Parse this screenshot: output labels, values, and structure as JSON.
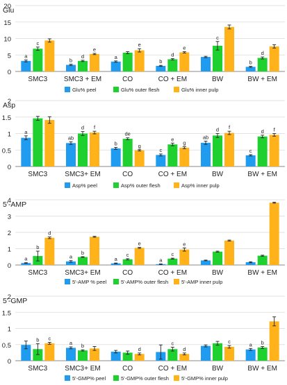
{
  "colors": {
    "peel": "#1f9bf0",
    "outer": "#1fd12f",
    "inner": "#ffb21a",
    "grid": "#d9d9d9",
    "axis": "#888888",
    "text": "#222222"
  },
  "chart_data": [
    {
      "type": "bar",
      "panel_title": "Glu",
      "categories": [
        "SMC3",
        "SMC3 + EM",
        "CO",
        "CO + EM",
        "BW",
        "BW + EM"
      ],
      "ylim": [
        0,
        20
      ],
      "yticks": [
        0,
        5,
        10,
        15,
        20
      ],
      "grid": true,
      "legend_placement": "bottom",
      "series": [
        {
          "name": "Glu% peel",
          "color_key": "peel",
          "values": [
            3.2,
            2.0,
            3.0,
            1.7,
            4.4,
            1.4
          ],
          "errors": [
            0.3,
            0.2,
            0.2,
            0.15,
            0.2,
            0.15
          ],
          "letters": [
            "a",
            "b",
            "a",
            "b",
            "",
            "b"
          ]
        },
        {
          "name": "Glu% outer flesh",
          "color_key": "outer",
          "values": [
            6.9,
            3.2,
            5.7,
            3.7,
            7.8,
            4.1
          ],
          "errors": [
            0.5,
            0.2,
            0.3,
            0.2,
            1.3,
            0.3
          ],
          "letters": [
            "c",
            "d",
            "",
            "d",
            "c",
            "d"
          ]
        },
        {
          "name": "Glu% inner pulp",
          "color_key": "inner",
          "values": [
            9.4,
            5.3,
            6.4,
            5.8,
            13.5,
            7.6
          ],
          "errors": [
            0.5,
            0.2,
            0.5,
            0.2,
            0.6,
            0.5
          ],
          "letters": [
            "",
            "e",
            "e",
            "e",
            "",
            ""
          ]
        }
      ]
    },
    {
      "type": "bar",
      "panel_title": "Asp",
      "categories": [
        "SMC3",
        "SMC3+ EM",
        "CO",
        "CO + EM",
        "BW",
        "BW + EM"
      ],
      "ylim": [
        0,
        2
      ],
      "yticks": [
        0,
        0.5,
        1,
        1.5,
        2
      ],
      "grid": true,
      "legend_placement": "bottom",
      "series": [
        {
          "name": "Asp% peel",
          "color_key": "peel",
          "values": [
            0.87,
            0.71,
            0.55,
            0.35,
            0.72,
            0.34
          ],
          "errors": [
            0.06,
            0.04,
            0.03,
            0.03,
            0.05,
            0.02
          ],
          "letters": [
            "a",
            "ab",
            "b",
            "c",
            "ab",
            "c"
          ]
        },
        {
          "name": "Asp% outer flesh",
          "color_key": "outer",
          "values": [
            1.46,
            1.0,
            0.84,
            0.67,
            0.94,
            0.91
          ],
          "errors": [
            0.06,
            0.06,
            0.03,
            0.04,
            0.06,
            0.04
          ],
          "letters": [
            "",
            "d",
            "de",
            "e",
            "d",
            "d"
          ]
        },
        {
          "name": "Asp% inner pulp",
          "color_key": "inner",
          "values": [
            1.41,
            1.03,
            0.49,
            0.57,
            1.02,
            0.96
          ],
          "errors": [
            0.1,
            0.04,
            0.02,
            0.03,
            0.05,
            0.04
          ],
          "letters": [
            "",
            "f",
            "g",
            "g",
            "f",
            "f"
          ]
        }
      ]
    },
    {
      "type": "bar",
      "panel_title": "5'-AMP",
      "categories": [
        "SMC3",
        "SMC3+ EM",
        "CO",
        "CO + EM",
        "BW",
        "BW + EM"
      ],
      "ylim": [
        0,
        4
      ],
      "yticks": [
        0,
        1,
        2,
        3,
        4
      ],
      "grid": true,
      "legend_placement": "bottom",
      "series": [
        {
          "name": "5'-AMP % peel",
          "color_key": "peel",
          "values": [
            0.12,
            0.22,
            0.1,
            0.05,
            0.28,
            0.17
          ],
          "errors": [
            0.02,
            0.05,
            0.02,
            0.02,
            0.02,
            0.03
          ],
          "letters": [
            "a",
            "a",
            "a",
            "a",
            "",
            ""
          ]
        },
        {
          "name": "5'-AMP% outer flesh",
          "color_key": "outer",
          "values": [
            0.55,
            0.49,
            0.35,
            0.39,
            0.82,
            0.57
          ],
          "errors": [
            0.3,
            0.02,
            0.04,
            0.03,
            0.03,
            0.03
          ],
          "letters": [
            "b",
            "b",
            "c",
            "c",
            "",
            ""
          ]
        },
        {
          "name": "5'-AMP inner pulp",
          "color_key": "inner",
          "values": [
            1.67,
            1.73,
            1.05,
            0.95,
            1.5,
            3.82
          ],
          "errors": [
            0.05,
            0.03,
            0.03,
            0.1,
            0.03,
            0.03
          ],
          "letters": [
            "d",
            "",
            "e",
            "e",
            "",
            ""
          ]
        }
      ]
    },
    {
      "type": "bar",
      "panel_title": "5'-GMP",
      "categories": [
        "SMC3",
        "SMC3+ EM",
        "CO",
        "CO + EM",
        "BW",
        "BW + EM"
      ],
      "ylim": [
        0,
        2
      ],
      "yticks": [
        0,
        0.5,
        1,
        1.5,
        2
      ],
      "grid": true,
      "legend_placement": "bottom",
      "series": [
        {
          "name": "5'-GMP% peel",
          "color_key": "peel",
          "values": [
            0.49,
            0.4,
            0.28,
            0.27,
            0.46,
            0.35
          ],
          "errors": [
            0.12,
            0.03,
            0.04,
            0.22,
            0.03,
            0.03
          ],
          "letters": [
            "",
            "a",
            "",
            "",
            "",
            "a"
          ]
        },
        {
          "name": "5'-GMP% outer flesh",
          "color_key": "outer",
          "values": [
            0.36,
            0.32,
            0.25,
            0.36,
            0.54,
            0.41
          ],
          "errors": [
            0.17,
            0.02,
            0.05,
            0.06,
            0.06,
            0.03
          ],
          "letters": [
            "b",
            "b",
            "",
            "c",
            "",
            "b"
          ]
        },
        {
          "name": "5'-GMP% inner pulp",
          "color_key": "inner",
          "values": [
            0.54,
            0.38,
            0.21,
            0.21,
            0.43,
            1.22
          ],
          "errors": [
            0.03,
            0.06,
            0.03,
            0.03,
            0.04,
            0.14
          ],
          "letters": [
            "c",
            "",
            "d",
            "d",
            "c",
            ""
          ]
        }
      ]
    }
  ]
}
